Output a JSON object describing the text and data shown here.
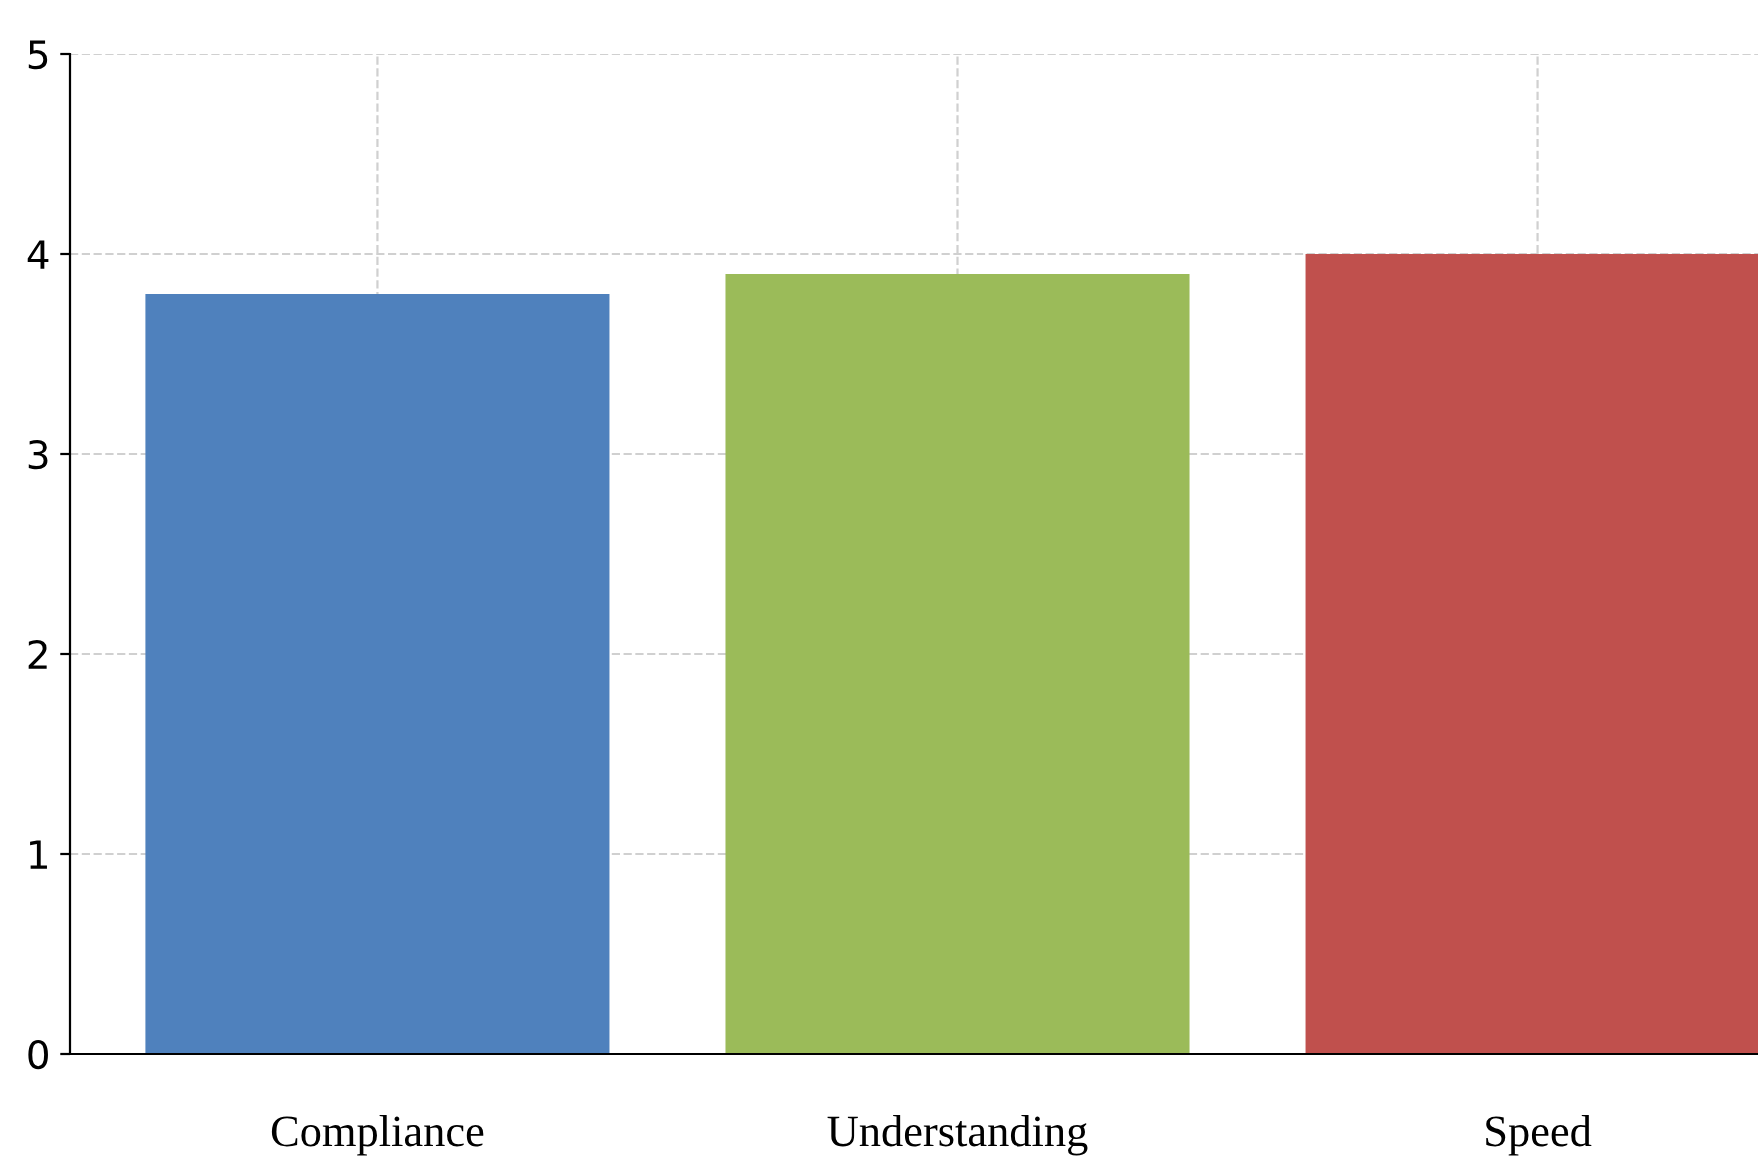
{
  "chart_data": {
    "type": "bar",
    "categories": [
      "Compliance",
      "Understanding",
      "Speed"
    ],
    "values": [
      3.8,
      3.9,
      4.0
    ],
    "colors": [
      "#4f81bd",
      "#9bbb59",
      "#c0504d"
    ],
    "ylim": [
      0,
      5
    ],
    "yticks": [
      0,
      1,
      2,
      3,
      4,
      5
    ],
    "grid": true
  }
}
